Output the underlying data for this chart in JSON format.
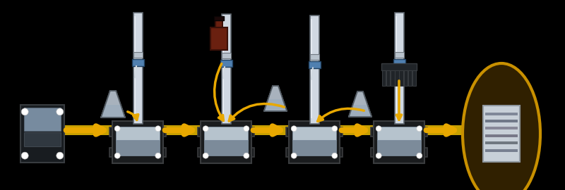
{
  "bg_color": "#000000",
  "arrow_color": "#E8A800",
  "gel_box": {
    "outer_color": "#1a1c1e",
    "outer_border": "#3a3c3e",
    "inner_liquid_top": "#c0cdd8",
    "inner_liquid_bot": "#8898a8",
    "inner_dark": "#404850"
  },
  "tube": {
    "body": "#d0d8e0",
    "border": "#707880",
    "highlight": "#f0f4f8",
    "connector_color": "#5080b0",
    "connector_dark": "#204060"
  },
  "erlenmeyer": {
    "body": "#c0ccd8",
    "border": "#505860",
    "liquid": "#9aacbc"
  },
  "power_supply": {
    "body": "#181c20",
    "border": "#383c40",
    "screen": "#5070a0",
    "knob": "#282c30"
  },
  "sample_bottle": {
    "body": "#6a2010",
    "border": "#3a1008",
    "cap": "#1a0808"
  },
  "comb": {
    "color": "#202428",
    "border": "#383c40"
  },
  "result_circle": {
    "fill": "#302000",
    "border": "#c89000",
    "gel_body": "#c8d0d8",
    "gel_border": "#9098a0",
    "band_colors": [
      "#808898",
      "#707888",
      "#888898",
      "#787888",
      "#707880",
      "#788090"
    ]
  },
  "white_dot": "#ffffff",
  "yellow_bar": "#c8a000"
}
